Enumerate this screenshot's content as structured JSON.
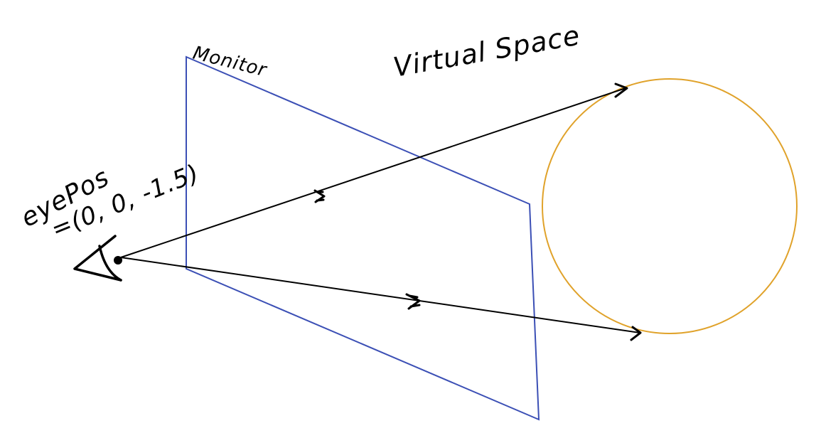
{
  "labels": {
    "monitor": "Monitor",
    "virtual_space": "Virtual Space",
    "eye_pos": "eyePos",
    "eye_coords": "=(0, 0, -1.5)"
  },
  "colors": {
    "monitor": "#3b4fb5",
    "sphere": "#e0a22a",
    "ink": "#000000"
  },
  "icons": {
    "viewer": "eye-icon",
    "ray_marker": "arrow-marker-icon"
  }
}
